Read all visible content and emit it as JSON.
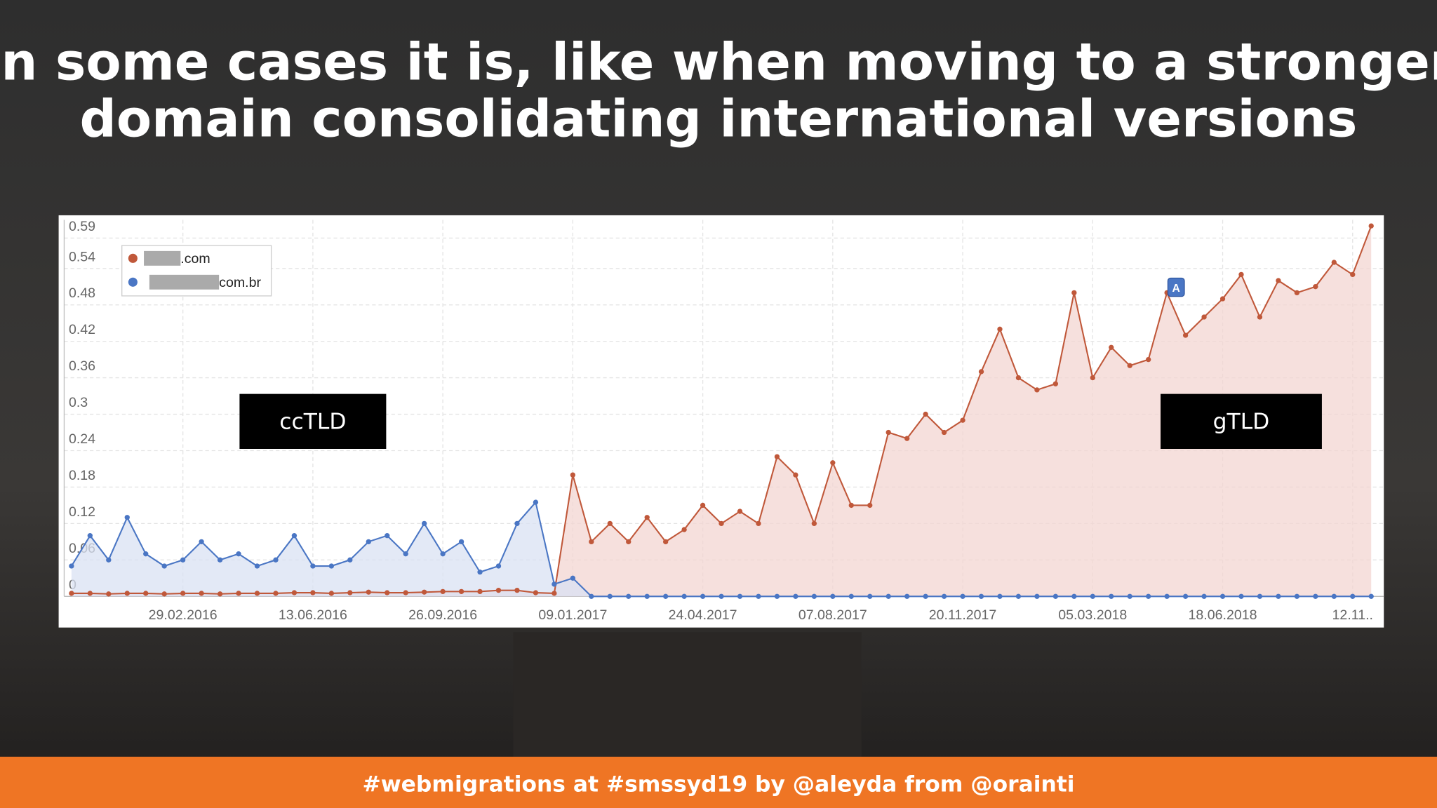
{
  "slide": {
    "title_lines": [
      "In some cases it is, like when moving to a stronger",
      "domain consolidating international versions"
    ],
    "footer": "#webmigrations at #smssyd19 by @aleyda from @orainti"
  },
  "chart_data": {
    "type": "line",
    "categories": [
      null,
      null,
      null,
      null,
      null,
      null,
      "29.02.2016",
      null,
      null,
      null,
      null,
      null,
      null,
      "13.06.2016",
      null,
      null,
      null,
      null,
      null,
      null,
      "26.09.2016",
      null,
      null,
      null,
      null,
      null,
      null,
      "09.01.2017",
      null,
      null,
      null,
      null,
      null,
      null,
      "24.04.2017",
      null,
      null,
      null,
      null,
      null,
      null,
      "07.08.2017",
      null,
      null,
      null,
      null,
      null,
      null,
      "20.11.2017",
      null,
      null,
      null,
      null,
      null,
      null,
      "05.03.2018",
      null,
      null,
      null,
      null,
      null,
      null,
      "18.06.2018",
      null,
      null,
      null,
      null,
      null,
      null,
      "12.11..",
      null
    ],
    "series": [
      {
        "name": ".com",
        "color": "#c0583a",
        "fill": "#f3d6d1",
        "values": [
          0.005,
          0.005,
          0.004,
          0.005,
          0.005,
          0.004,
          0.005,
          0.005,
          0.004,
          0.005,
          0.005,
          0.005,
          0.006,
          0.006,
          0.005,
          0.006,
          0.007,
          0.006,
          0.006,
          0.007,
          0.008,
          0.008,
          0.008,
          0.01,
          0.01,
          0.006,
          0.005,
          0.2,
          0.09,
          0.12,
          0.09,
          0.13,
          0.09,
          0.11,
          0.15,
          0.12,
          0.14,
          0.12,
          0.23,
          0.2,
          0.12,
          0.22,
          0.15,
          0.15,
          0.27,
          0.26,
          0.3,
          0.27,
          0.29,
          0.37,
          0.44,
          0.36,
          0.34,
          0.35,
          0.5,
          0.36,
          0.41,
          0.38,
          0.39,
          0.5,
          0.43,
          0.46,
          0.49,
          0.53,
          0.46,
          0.52,
          0.5,
          0.51,
          0.55,
          0.53,
          0.61
        ]
      },
      {
        "name": "com.br",
        "color": "#4a76c4",
        "fill": "#d9e2f3",
        "values": [
          0.05,
          0.1,
          0.06,
          0.13,
          0.07,
          0.05,
          0.06,
          0.09,
          0.06,
          0.07,
          0.05,
          0.06,
          0.1,
          0.05,
          0.05,
          0.06,
          0.09,
          0.1,
          0.07,
          0.12,
          0.07,
          0.09,
          0.04,
          0.05,
          0.12,
          0.155,
          0.02,
          0.03,
          0,
          0,
          0,
          0,
          0,
          0,
          0,
          0,
          0,
          0,
          0,
          0,
          0,
          0,
          0,
          0,
          0,
          0,
          0,
          0,
          0,
          0,
          0,
          0,
          0,
          0,
          0,
          0,
          0,
          0,
          0,
          0,
          0,
          0,
          0,
          0,
          0,
          0,
          0,
          0,
          0,
          0,
          0
        ]
      }
    ],
    "ylim": [
      0,
      0.62
    ],
    "yticks": [
      0,
      0.06,
      0.12,
      0.18,
      0.24,
      0.3,
      0.36,
      0.42,
      0.48,
      0.54,
      0.59
    ],
    "grid": true,
    "legend": "top-left",
    "annotations": [
      {
        "text": "ccTLD",
        "index": 13
      },
      {
        "text": "gTLD",
        "index": 63
      }
    ],
    "flag": {
      "text": "A",
      "index": 59,
      "series": 0
    }
  }
}
